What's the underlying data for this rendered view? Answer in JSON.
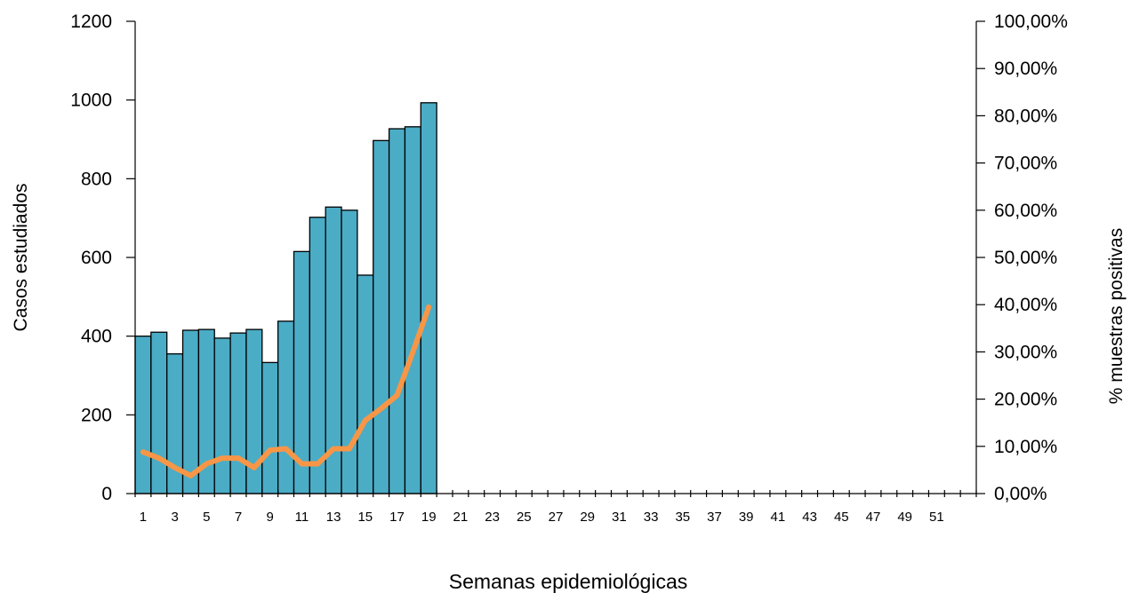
{
  "chart_data": {
    "type": "bar",
    "xlabel": "Semanas epidemiológicas",
    "ylabel_left": "Casos estudiados",
    "ylabel_right": "% muestras positivas",
    "x_categories": [
      1,
      2,
      3,
      4,
      5,
      6,
      7,
      8,
      9,
      10,
      11,
      12,
      13,
      14,
      15,
      16,
      17,
      18,
      19,
      20,
      21,
      22,
      23,
      24,
      25,
      26,
      27,
      28,
      29,
      30,
      31,
      32,
      33,
      34,
      35,
      36,
      37,
      38,
      39,
      40,
      41,
      42,
      43,
      44,
      45,
      46,
      47,
      48,
      49,
      50,
      51,
      52,
      53
    ],
    "x_tick_labels": [
      "1",
      "3",
      "5",
      "7",
      "9",
      "11",
      "13",
      "15",
      "17",
      "19",
      "21",
      "23",
      "25",
      "27",
      "29",
      "31",
      "33",
      "35",
      "37",
      "39",
      "41",
      "43",
      "45",
      "47",
      "49",
      "51"
    ],
    "ylim_left": [
      0,
      1200
    ],
    "yticks_left": [
      "0",
      "200",
      "400",
      "600",
      "800",
      "1000",
      "1200"
    ],
    "ylim_right": [
      0,
      100
    ],
    "yticks_right": [
      "0,00%",
      "10,00%",
      "20,00%",
      "30,00%",
      "40,00%",
      "50,00%",
      "60,00%",
      "70,00%",
      "80,00%",
      "90,00%",
      "100,00%"
    ],
    "series": [
      {
        "kind": "bar",
        "axis": "left",
        "color": "#4BACC6",
        "values": [
          400,
          410,
          355,
          415,
          417,
          395,
          408,
          417,
          333,
          438,
          615,
          702,
          728,
          720,
          555,
          897,
          927,
          932,
          993
        ]
      },
      {
        "kind": "line",
        "axis": "right",
        "color": "#F79646",
        "values": [
          8.8,
          7.5,
          5.5,
          3.8,
          6.3,
          7.5,
          7.5,
          5.5,
          9.2,
          9.5,
          6.3,
          6.3,
          9.5,
          9.5,
          15.5,
          18.0,
          20.8,
          30.0,
          39.5
        ]
      }
    ],
    "grid": false,
    "legend": "none"
  }
}
